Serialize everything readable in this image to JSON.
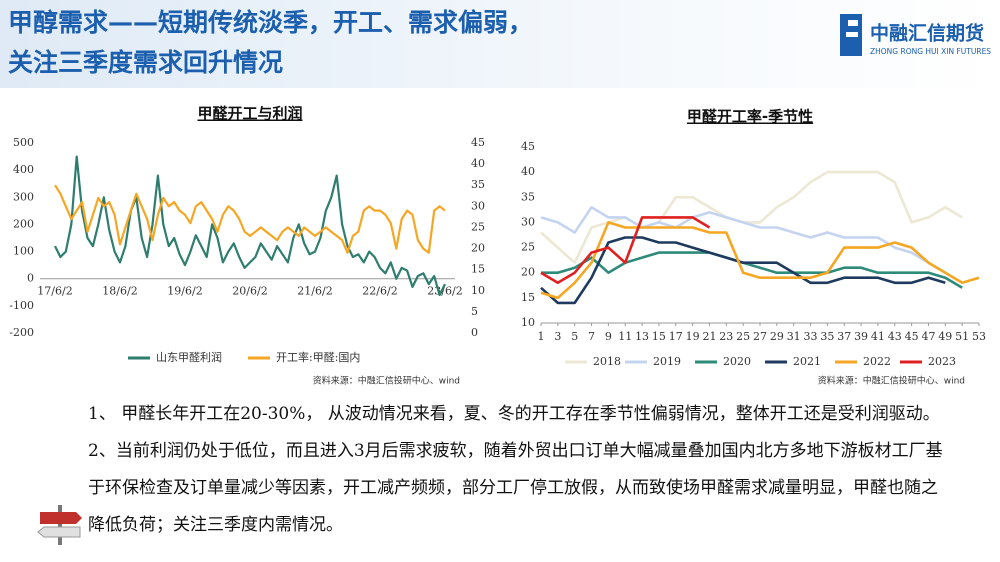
{
  "header": {
    "title_line1": "甲醇需求——短期传统淡季，开工、需求偏弱，",
    "title_line2": "关注三季度需求回升情况",
    "logo_name": "中融汇信期货",
    "logo_sub": "ZHONG RONG HUI XIN FUTURES"
  },
  "chart_data": [
    {
      "type": "line",
      "title": "甲醛开工与利润",
      "source": "资料来源：中融汇信投研中心、wind",
      "categories": [
        "17/6/2",
        null,
        null,
        null,
        null,
        null,
        null,
        null,
        null,
        null,
        null,
        null,
        "18/6/2",
        null,
        null,
        null,
        null,
        null,
        null,
        null,
        null,
        null,
        null,
        null,
        "19/6/2",
        null,
        null,
        null,
        null,
        null,
        null,
        null,
        null,
        null,
        null,
        null,
        "20/6/2",
        null,
        null,
        null,
        null,
        null,
        null,
        null,
        null,
        null,
        null,
        null,
        "21/6/2",
        null,
        null,
        null,
        null,
        null,
        null,
        null,
        null,
        null,
        null,
        null,
        "22/6/2",
        null,
        null,
        null,
        null,
        null,
        null,
        null,
        null,
        null,
        null,
        null,
        "23/6/2"
      ],
      "series": [
        {
          "name": "山东甲醛利润",
          "color": "#2e7d6e",
          "values": [
            120,
            80,
            100,
            200,
            450,
            250,
            150,
            120,
            200,
            300,
            180,
            100,
            60,
            120,
            250,
            300,
            150,
            80,
            200,
            380,
            200,
            120,
            150,
            90,
            50,
            100,
            160,
            120,
            80,
            200,
            150,
            60,
            100,
            130,
            80,
            40,
            60,
            80,
            130,
            100,
            70,
            120,
            90,
            60,
            150,
            200,
            130,
            90,
            100,
            150,
            250,
            300,
            380,
            200,
            120,
            80,
            90,
            60,
            100,
            80,
            40,
            20,
            60,
            0,
            40,
            30,
            -30,
            10,
            20,
            -20,
            10,
            -60,
            -20
          ]
        },
        {
          "name": "开工率:甲醛:国内",
          "color": "#f5a623",
          "axis": "y2",
          "values": [
            35,
            33,
            30,
            27,
            29,
            31,
            24,
            28,
            32,
            30,
            31,
            28,
            21,
            25,
            29,
            33,
            30,
            27,
            22,
            28,
            32,
            30,
            31,
            29,
            28,
            26,
            30,
            31,
            29,
            27,
            24,
            28,
            30,
            29,
            27,
            24,
            23,
            24,
            25,
            24,
            23,
            22,
            24,
            25,
            24,
            23,
            25,
            24,
            23,
            24,
            25,
            24,
            23,
            22,
            19,
            23,
            24,
            29,
            30,
            29,
            29,
            28,
            26,
            20,
            27,
            29,
            28,
            22,
            20,
            19,
            29,
            30,
            29
          ]
        }
      ],
      "ylim": [
        -200,
        500
      ],
      "yticks": [
        -200,
        -100,
        0,
        100,
        200,
        300,
        400,
        500
      ],
      "y2lim": [
        0,
        45
      ],
      "y2ticks": [
        0,
        5,
        10,
        15,
        20,
        25,
        30,
        35,
        40,
        45
      ]
    },
    {
      "type": "line",
      "title": "甲醛开工率-季节性",
      "source": "资料来源：中融汇信投研中心、wind",
      "x": [
        1,
        3,
        5,
        7,
        9,
        11,
        13,
        15,
        17,
        19,
        21,
        23,
        25,
        27,
        29,
        31,
        33,
        35,
        37,
        39,
        41,
        43,
        45,
        47,
        49,
        51,
        53
      ],
      "xlim": [
        1,
        53
      ],
      "xticks": [
        1,
        3,
        5,
        7,
        9,
        11,
        13,
        15,
        17,
        19,
        21,
        23,
        25,
        27,
        29,
        31,
        33,
        35,
        37,
        39,
        41,
        43,
        45,
        47,
        49,
        51,
        53
      ],
      "ylim": [
        10,
        45
      ],
      "yticks": [
        10,
        15,
        20,
        25,
        30,
        35,
        40,
        45
      ],
      "series": [
        {
          "name": "2018",
          "color": "#ece8d4",
          "values": [
            28,
            25,
            22,
            29,
            30,
            31,
            29,
            30,
            35,
            35,
            33,
            31,
            30,
            30,
            33,
            35,
            38,
            40,
            40,
            40,
            40,
            38,
            30,
            31,
            33,
            31,
            null
          ]
        },
        {
          "name": "2019",
          "color": "#c4d4f0",
          "values": [
            31,
            30,
            28,
            33,
            31,
            31,
            29,
            30,
            29,
            31,
            32,
            31,
            30,
            29,
            29,
            28,
            27,
            28,
            27,
            27,
            27,
            25,
            24,
            22,
            20,
            null,
            null
          ]
        },
        {
          "name": "2020",
          "color": "#2e8b7a",
          "values": [
            20,
            20,
            21,
            23,
            20,
            22,
            23,
            24,
            24,
            24,
            24,
            23,
            22,
            21,
            20,
            20,
            20,
            20,
            21,
            21,
            20,
            20,
            20,
            20,
            19,
            17,
            null
          ]
        },
        {
          "name": "2021",
          "color": "#1f3a5f",
          "values": [
            17,
            14,
            14,
            19,
            26,
            27,
            27,
            26,
            26,
            25,
            24,
            23,
            22,
            22,
            22,
            20,
            18,
            18,
            19,
            19,
            19,
            18,
            18,
            19,
            18,
            null,
            null
          ]
        },
        {
          "name": "2022",
          "color": "#f5a623",
          "values": [
            16,
            15,
            18,
            22,
            30,
            29,
            29,
            29,
            29,
            29,
            28,
            28,
            20,
            19,
            19,
            19,
            19,
            20,
            25,
            25,
            25,
            26,
            25,
            22,
            20,
            18,
            19
          ]
        },
        {
          "name": "2023",
          "color": "#e02020",
          "values": [
            20,
            18,
            20,
            24,
            25,
            22,
            31,
            31,
            31,
            31,
            29,
            null,
            null,
            null,
            null,
            null,
            null,
            null,
            null,
            null,
            null,
            null,
            null,
            null,
            null,
            null,
            null
          ]
        }
      ]
    }
  ],
  "notes": {
    "points": [
      "1、 甲醛长年开工在20-30%， 从波动情况来看，夏、冬的开工存在季节性偏弱情况，整体开工还是受利润驱动。",
      "2、当前利润仍处于低位，而且进入3月后需求疲软，随着外贸出口订单大幅减量叠加国内北方多地下游板材工厂基于环保检查及订单量减少等因素，开工减产频频，部分工厂停工放假，从而致使场甲醛需求减量明显，甲醛也随之降低负荷；关注三季度内需情况。"
    ]
  }
}
